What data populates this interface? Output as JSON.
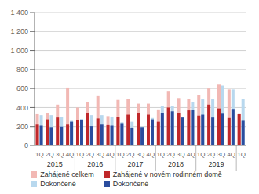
{
  "chart_data": {
    "type": "bar",
    "categories": [
      "1Q",
      "2Q",
      "3Q",
      "4Q",
      "1Q",
      "2Q",
      "3Q",
      "4Q",
      "1Q",
      "2Q",
      "3Q",
      "4Q",
      "1Q",
      "2Q",
      "3Q",
      "4Q",
      "1Q",
      "2Q",
      "3Q",
      "4Q",
      "1Q"
    ],
    "annotations": [
      "2015",
      "2016",
      "2017",
      "2018",
      "2019"
    ],
    "series": [
      {
        "name": "Zahájené celkem",
        "color": "#f2b8b4",
        "values": [
          330,
          340,
          430,
          610,
          400,
          460,
          520,
          310,
          480,
          490,
          440,
          440,
          380,
          575,
          500,
          490,
          530,
          600,
          640,
          590,
          330
        ]
      },
      {
        "name": "Dokončené",
        "color": "#b8d8ee",
        "values": [
          320,
          320,
          300,
          260,
          280,
          320,
          320,
          305,
          245,
          250,
          200,
          290,
          415,
          415,
          300,
          455,
          490,
          490,
          630,
          590,
          490
        ]
      },
      {
        "name": "Zahájené v novém rodinném domě",
        "color": "#c0272a",
        "values": [
          220,
          275,
          295,
          220,
          265,
          340,
          285,
          215,
          300,
          325,
          340,
          325,
          250,
          400,
          340,
          370,
          315,
          430,
          390,
          290,
          330
        ]
      },
      {
        "name": "Dokončené",
        "color": "#2a4d9e",
        "values": [
          210,
          195,
          200,
          250,
          270,
          205,
          220,
          210,
          235,
          190,
          195,
          275,
          345,
          360,
          295,
          375,
          325,
          295,
          335,
          385,
          260
        ]
      }
    ],
    "ylim": [
      0,
      1400
    ],
    "yticks": [
      0,
      200,
      400,
      600,
      800,
      {
        "value": 1000,
        "label": "1 000"
      },
      {
        "value": 1200,
        "label": "1 200"
      },
      {
        "value": 1400,
        "label": "1 400"
      }
    ],
    "grid": true,
    "legend": "bottom"
  }
}
